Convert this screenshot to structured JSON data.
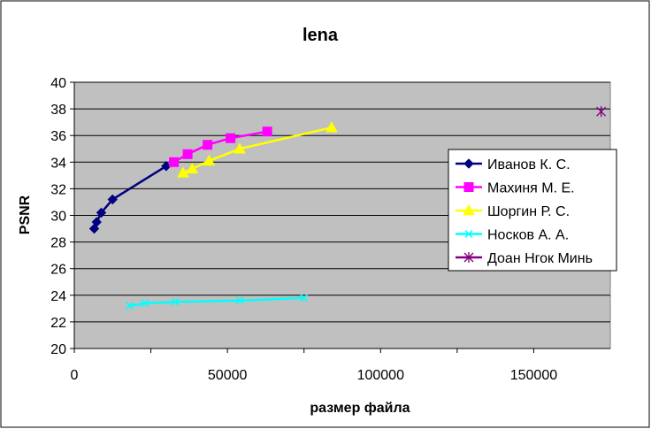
{
  "chart_data": {
    "type": "line",
    "title": "lena",
    "xlabel": "размер файла",
    "ylabel": "PSNR",
    "xlim": [
      0,
      175000
    ],
    "ylim": [
      20,
      40
    ],
    "x_ticks": [
      0,
      50000,
      100000,
      150000
    ],
    "y_ticks": [
      20,
      22,
      24,
      26,
      28,
      30,
      32,
      34,
      36,
      38,
      40
    ],
    "x_tick_labels": [
      "0",
      "50000",
      "100000",
      "150000"
    ],
    "y_tick_labels": [
      "20",
      "22",
      "24",
      "26",
      "28",
      "30",
      "32",
      "34",
      "36",
      "38",
      "40"
    ],
    "grid": "horizontal",
    "legend_position": "right",
    "plot_background": "#c0c0c0",
    "series": [
      {
        "name": "Иванов К. С.",
        "color": "#000080",
        "marker": "diamond",
        "points": [
          [
            6500,
            29.0
          ],
          [
            7300,
            29.5
          ],
          [
            8800,
            30.2
          ],
          [
            12500,
            31.2
          ],
          [
            30000,
            33.7
          ]
        ]
      },
      {
        "name": "Махиня М. Е.",
        "color": "#ff00ff",
        "marker": "square",
        "points": [
          [
            32500,
            34.0
          ],
          [
            37000,
            34.6
          ],
          [
            43500,
            35.3
          ],
          [
            51000,
            35.8
          ],
          [
            63000,
            36.3
          ]
        ]
      },
      {
        "name": "Шоргин Р. С.",
        "color": "#ffff00",
        "marker": "triangle",
        "points": [
          [
            35500,
            33.2
          ],
          [
            38500,
            33.5
          ],
          [
            44000,
            34.1
          ],
          [
            54000,
            35.0
          ],
          [
            84000,
            36.6
          ]
        ]
      },
      {
        "name": "Носков А. А.",
        "color": "#00ffff",
        "marker": "x",
        "points": [
          [
            18000,
            23.2
          ],
          [
            23000,
            23.4
          ],
          [
            33000,
            23.5
          ],
          [
            54000,
            23.6
          ],
          [
            75000,
            23.8
          ]
        ]
      },
      {
        "name": "Доан Нгок Минь",
        "color": "#800080",
        "marker": "star",
        "points": [
          [
            172000,
            37.8
          ]
        ]
      }
    ]
  }
}
